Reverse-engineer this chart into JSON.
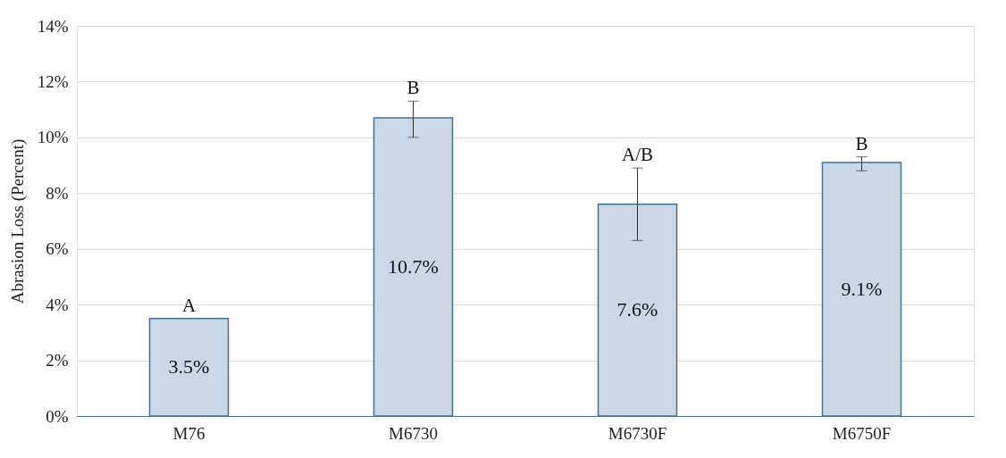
{
  "chart_data": {
    "type": "bar",
    "ylabel": "Abrasion Loss (Percent)",
    "categories": [
      "M76",
      "M6730",
      "M6730F",
      "M6750F"
    ],
    "values": [
      3.5,
      10.7,
      7.6,
      9.1
    ],
    "value_labels": [
      "3.5%",
      "10.7%",
      "7.6%",
      "9.1%"
    ],
    "errors": [
      null,
      [
        10.0,
        11.3
      ],
      [
        6.3,
        8.9
      ],
      [
        8.8,
        9.3
      ]
    ],
    "color": "#c9d7e7",
    "ylim": [
      0,
      14
    ],
    "yticks": [
      {
        "value": 0,
        "label": "0%"
      },
      {
        "value": 2,
        "label": "2%"
      },
      {
        "value": 4,
        "label": "4%"
      },
      {
        "value": 6,
        "label": "6%"
      },
      {
        "value": 8,
        "label": "8%"
      },
      {
        "value": 10,
        "label": "10%"
      },
      {
        "value": 12,
        "label": "12%"
      },
      {
        "value": 14,
        "label": "14%"
      }
    ],
    "annotations": [
      "A",
      "B",
      "A/B",
      "B"
    ],
    "grid": "y"
  }
}
